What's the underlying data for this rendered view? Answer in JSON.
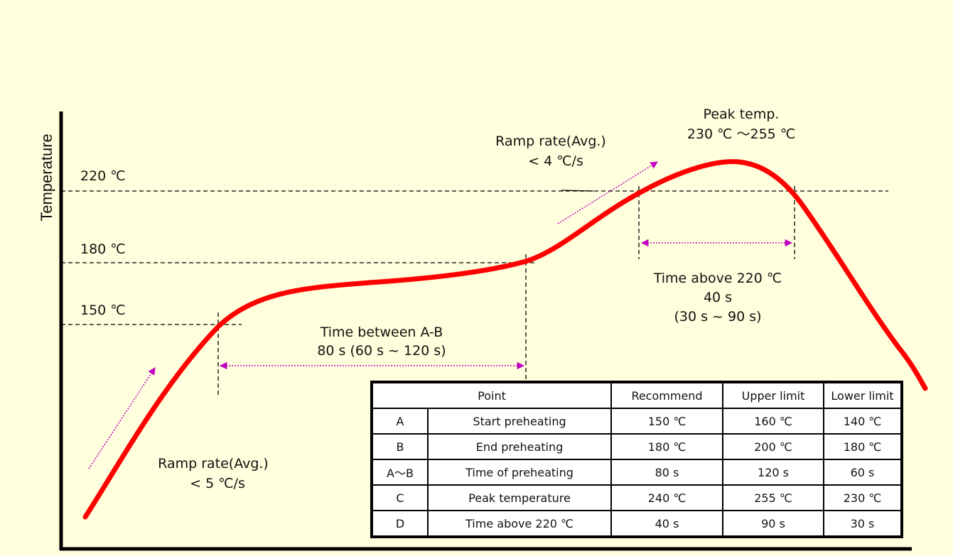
{
  "axes": {
    "ylabel": "Temperature",
    "levels": [
      {
        "label": "220 ℃",
        "temp": 220
      },
      {
        "label": "180 ℃",
        "temp": 180
      },
      {
        "label": "150 ℃",
        "temp": 150
      }
    ]
  },
  "annotations": {
    "peak_title": "Peak temp.",
    "peak_range": "230 ℃ ～255 ℃",
    "ramp_upper_title": "Ramp rate(Avg.)",
    "ramp_upper_value": "< 4 ℃/s",
    "ramp_lower_title": "Ramp rate(Avg.)",
    "ramp_lower_value": "< 5 ℃/s",
    "time_ab_title": "Time between A-B",
    "time_ab_value": "80 s (60 s ~ 120 s)",
    "time_above_title": "Time above 220 ℃",
    "time_above_value": "40 s",
    "time_above_range": "(30 s ~ 90 s)"
  },
  "colors": {
    "curve": "#ff0000",
    "arrow": "#c000c0",
    "background": "#ffffdd"
  },
  "table": {
    "headers": [
      "Point",
      "Recommend",
      "Upper limit",
      "Lower limit"
    ],
    "rows": [
      {
        "point": "A",
        "desc": "Start preheating",
        "recommend": "150 ℃",
        "upper": "160 ℃",
        "lower": "140 ℃"
      },
      {
        "point": "B",
        "desc": "End preheating",
        "recommend": "180 ℃",
        "upper": "200 ℃",
        "lower": "180 ℃"
      },
      {
        "point": "A～B",
        "desc": "Time of preheating",
        "recommend": "80 s",
        "upper": "120 s",
        "lower": "60 s"
      },
      {
        "point": "C",
        "desc": "Peak temperature",
        "recommend": "240 ℃",
        "upper": "255 ℃",
        "lower": "230 ℃"
      },
      {
        "point": "D",
        "desc": "Time above 220 ℃",
        "recommend": "40 s",
        "upper": "90 s",
        "lower": "30 s"
      }
    ]
  }
}
